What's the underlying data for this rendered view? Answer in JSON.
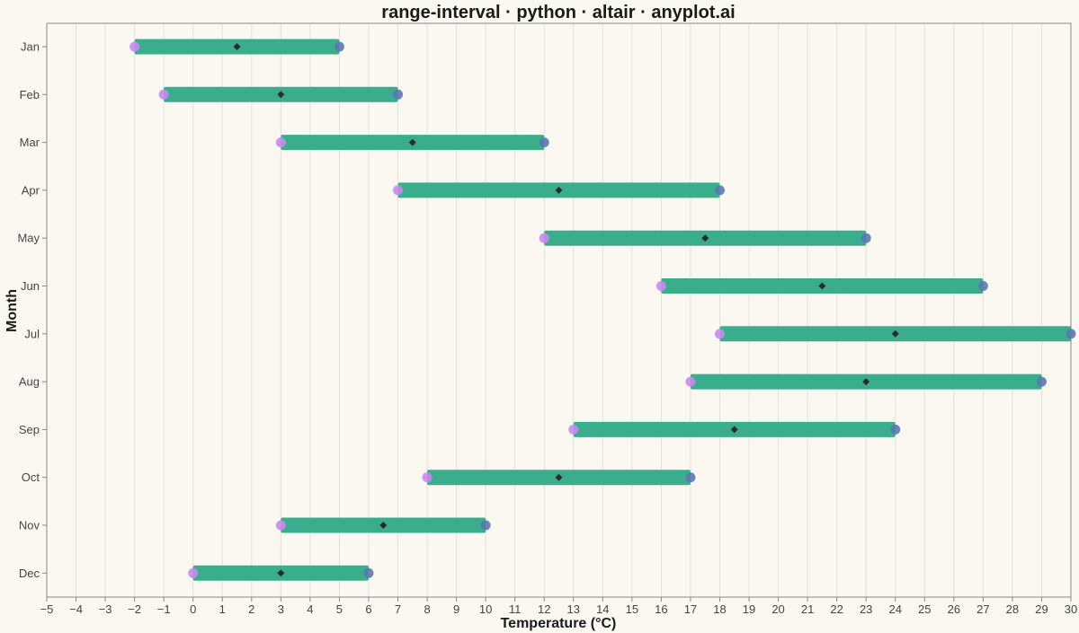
{
  "chart_data": {
    "type": "range-interval",
    "title": "range-interval · python · altair · anyplot.ai",
    "xlabel": "Temperature (°C)",
    "ylabel": "Month",
    "xlim": [
      -5,
      30
    ],
    "x_ticks": [
      "−5",
      "−4",
      "−3",
      "−2",
      "−1",
      "0",
      "1",
      "2",
      "3",
      "4",
      "5",
      "6",
      "7",
      "8",
      "9",
      "10",
      "11",
      "12",
      "13",
      "14",
      "15",
      "16",
      "17",
      "18",
      "19",
      "20",
      "21",
      "22",
      "23",
      "24",
      "25",
      "26",
      "27",
      "28",
      "29",
      "30"
    ],
    "categories": [
      "Jan",
      "Feb",
      "Mar",
      "Apr",
      "May",
      "Jun",
      "Jul",
      "Aug",
      "Sep",
      "Oct",
      "Nov",
      "Dec"
    ],
    "low": [
      -2,
      -1,
      3,
      7,
      12,
      16,
      18,
      17,
      13,
      8,
      3,
      0
    ],
    "high": [
      5,
      7,
      12,
      18,
      23,
      27,
      30,
      29,
      24,
      17,
      10,
      6
    ],
    "mid": [
      1.5,
      3,
      7.5,
      12.5,
      17.5,
      21.5,
      24,
      23,
      18.5,
      12.5,
      6.5,
      3
    ],
    "grid": true,
    "colors": {
      "bar": "#2FAA86",
      "low_point": "#C88AEF",
      "high_point": "#5B78B3",
      "mid_marker": "#2B2B2B",
      "background": "#FAF8F1"
    }
  }
}
